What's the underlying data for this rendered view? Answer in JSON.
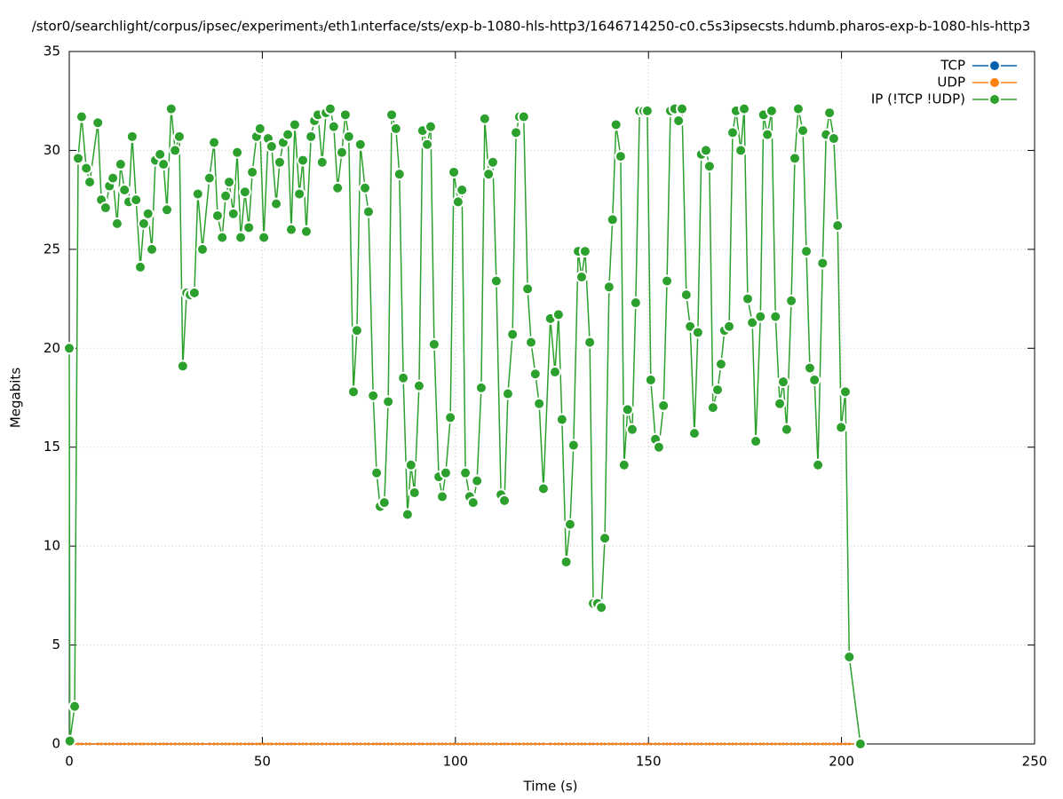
{
  "chart_data": {
    "type": "line",
    "title": "/stor0/searchlight/corpus/ipsec/experiment₃/eth1ᵢnterface/sts/exp-b-1080-hls-http3/1646714250-c0.c5s3ipsecsts.hdumb.pharos-exp-b-1080-hls-http3",
    "x_label": "Time (s)",
    "y_label": "Megabits",
    "xlim": [
      0,
      250
    ],
    "xticks": [
      0,
      50,
      100,
      150,
      200,
      250
    ],
    "ylim": [
      0,
      35
    ],
    "yticks": [
      0,
      5,
      10,
      15,
      20,
      25,
      30,
      35
    ],
    "grid": true,
    "legend": "top right",
    "x": [
      0,
      0.15,
      1.4,
      2.3,
      3.2,
      4.4,
      5.3,
      7.4,
      8.3,
      9.4,
      10.4,
      11.3,
      12.4,
      13.3,
      14.3,
      15.4,
      16.3,
      17.3,
      18.4,
      19.3,
      20.4,
      21.4,
      22.3,
      23.5,
      24.4,
      25.3,
      26.4,
      27.4,
      28.5,
      29.4,
      30.4,
      31.3,
      32.4,
      33.3,
      34.5,
      36.3,
      37.5,
      38.4,
      39.6,
      40.5,
      41.4,
      42.5,
      43.5,
      44.4,
      45.5,
      46.5,
      47.4,
      48.5,
      49.4,
      50.4,
      51.5,
      52.4,
      53.6,
      54.5,
      55.4,
      56.6,
      57.5,
      58.4,
      59.6,
      60.5,
      61.4,
      62.6,
      63.5,
      64.4,
      65.5,
      66.5,
      67.6,
      68.5,
      69.5,
      70.6,
      71.5,
      72.4,
      73.6,
      74.5,
      75.4,
      76.6,
      77.5,
      78.7,
      79.6,
      80.5,
      81.6,
      82.6,
      83.5,
      84.6,
      85.5,
      86.5,
      87.6,
      88.5,
      89.4,
      90.6,
      91.5,
      92.7,
      93.6,
      94.5,
      95.7,
      96.6,
      97.5,
      98.7,
      99.6,
      100.7,
      101.7,
      102.6,
      103.7,
      104.6,
      105.6,
      106.7,
      107.6,
      108.6,
      109.7,
      110.6,
      111.8,
      112.7,
      113.6,
      114.8,
      115.7,
      116.6,
      117.7,
      118.7,
      119.6,
      120.7,
      121.7,
      122.8,
      124.6,
      125.8,
      126.7,
      127.6,
      128.7,
      129.7,
      130.6,
      131.8,
      132.7,
      133.6,
      134.8,
      135.7,
      136.8,
      137.8,
      138.7,
      139.8,
      140.7,
      141.6,
      142.8,
      143.7,
      144.6,
      145.8,
      146.7,
      147.7,
      148.8,
      149.7,
      150.6,
      151.8,
      152.7,
      153.9,
      154.8,
      155.7,
      156.8,
      157.8,
      158.7,
      159.8,
      160.8,
      161.9,
      162.8,
      163.7,
      164.9,
      165.8,
      166.7,
      167.9,
      168.8,
      169.7,
      170.9,
      171.8,
      172.7,
      173.9,
      174.8,
      175.7,
      176.9,
      177.8,
      179.0,
      179.8,
      180.8,
      181.9,
      182.9,
      184.0,
      184.9,
      185.8,
      187.0,
      187.9,
      188.8,
      190.0,
      190.9,
      191.8,
      193.0,
      193.9,
      195.1,
      196.0,
      196.9,
      198.0,
      199.0,
      199.9,
      201.0,
      202.0,
      204.9
    ],
    "series": [
      {
        "name": "TCP",
        "color": "#0060ad",
        "values": [
          0,
          0,
          0,
          0,
          0,
          0,
          0,
          0,
          0,
          0,
          0,
          0,
          0,
          0,
          0,
          0,
          0,
          0,
          0,
          0,
          0,
          0,
          0,
          0,
          0,
          0,
          0,
          0,
          0,
          0,
          0,
          0,
          0,
          0,
          0,
          0,
          0,
          0,
          0,
          0,
          0,
          0,
          0,
          0,
          0,
          0,
          0,
          0,
          0,
          0,
          0,
          0,
          0,
          0,
          0,
          0,
          0,
          0,
          0,
          0,
          0,
          0,
          0,
          0,
          0,
          0,
          0,
          0,
          0,
          0,
          0,
          0,
          0,
          0,
          0,
          0,
          0,
          0,
          0,
          0,
          0,
          0,
          0,
          0,
          0,
          0,
          0,
          0,
          0,
          0,
          0,
          0,
          0,
          0,
          0,
          0,
          0,
          0,
          0,
          0,
          0,
          0,
          0,
          0,
          0,
          0,
          0,
          0,
          0,
          0,
          0,
          0,
          0,
          0,
          0,
          0,
          0,
          0,
          0,
          0,
          0,
          0,
          0,
          0,
          0,
          0,
          0,
          0,
          0,
          0,
          0,
          0,
          0,
          0,
          0,
          0,
          0,
          0,
          0,
          0,
          0,
          0,
          0,
          0,
          0,
          0,
          0,
          0,
          0,
          0,
          0,
          0,
          0,
          0,
          0,
          0,
          0,
          0,
          0,
          0,
          0,
          0,
          0,
          0,
          0,
          0,
          0,
          0,
          0,
          0,
          0,
          0,
          0,
          0,
          0,
          0,
          0,
          0,
          0,
          0,
          0,
          0,
          0,
          0,
          0,
          0,
          0,
          0,
          0,
          0,
          0,
          0,
          0,
          0,
          0,
          0,
          0,
          0,
          0,
          0,
          0
        ]
      },
      {
        "name": "UDP",
        "color": "#ff7f0e",
        "values": [
          0,
          0,
          0,
          0,
          0,
          0,
          0,
          0,
          0,
          0,
          0,
          0,
          0,
          0,
          0,
          0,
          0,
          0,
          0,
          0,
          0,
          0,
          0,
          0,
          0,
          0,
          0,
          0,
          0,
          0,
          0,
          0,
          0,
          0,
          0,
          0,
          0,
          0,
          0,
          0,
          0,
          0,
          0,
          0,
          0,
          0,
          0,
          0,
          0,
          0,
          0,
          0,
          0,
          0,
          0,
          0,
          0,
          0,
          0,
          0,
          0,
          0,
          0,
          0,
          0,
          0,
          0,
          0,
          0,
          0,
          0,
          0,
          0,
          0,
          0,
          0,
          0,
          0,
          0,
          0,
          0,
          0,
          0,
          0,
          0,
          0,
          0,
          0,
          0,
          0,
          0,
          0,
          0,
          0,
          0,
          0,
          0,
          0,
          0,
          0,
          0,
          0,
          0,
          0,
          0,
          0,
          0,
          0,
          0,
          0,
          0,
          0,
          0,
          0,
          0,
          0,
          0,
          0,
          0,
          0,
          0,
          0,
          0,
          0,
          0,
          0,
          0,
          0,
          0,
          0,
          0,
          0,
          0,
          0,
          0,
          0,
          0,
          0,
          0,
          0,
          0,
          0,
          0,
          0,
          0,
          0,
          0,
          0,
          0,
          0,
          0,
          0,
          0,
          0,
          0,
          0,
          0,
          0,
          0,
          0,
          0,
          0,
          0,
          0,
          0,
          0,
          0,
          0,
          0,
          0,
          0,
          0,
          0,
          0,
          0,
          0,
          0,
          0,
          0,
          0,
          0,
          0,
          0,
          0,
          0,
          0,
          0,
          0,
          0,
          0,
          0,
          0,
          0,
          0,
          0,
          0,
          0,
          0,
          0,
          0,
          0
        ]
      },
      {
        "name": "IP (!TCP  !UDP)",
        "color": "#2ca02c",
        "values": [
          20.0,
          0.15,
          1.9,
          29.6,
          31.7,
          29.1,
          28.4,
          31.4,
          27.5,
          27.1,
          28.2,
          28.6,
          26.3,
          29.3,
          28.0,
          27.4,
          30.7,
          27.5,
          24.1,
          26.3,
          26.8,
          25.0,
          29.5,
          29.8,
          29.3,
          27.0,
          32.1,
          30.0,
          30.7,
          19.1,
          22.8,
          22.7,
          22.8,
          27.8,
          25.0,
          28.6,
          30.4,
          26.7,
          25.6,
          27.7,
          28.4,
          26.8,
          29.9,
          25.6,
          27.9,
          26.1,
          28.9,
          30.7,
          31.1,
          25.6,
          30.6,
          30.2,
          27.3,
          29.4,
          30.4,
          30.8,
          26.0,
          31.3,
          27.8,
          29.5,
          25.9,
          30.7,
          31.5,
          31.8,
          29.4,
          31.9,
          32.1,
          31.2,
          28.1,
          29.9,
          31.8,
          30.7,
          17.8,
          20.9,
          30.3,
          28.1,
          26.9,
          17.6,
          13.7,
          12.0,
          12.2,
          17.3,
          31.8,
          31.1,
          28.8,
          18.5,
          11.6,
          14.1,
          12.7,
          18.1,
          31.0,
          30.3,
          31.2,
          20.2,
          13.5,
          12.5,
          13.7,
          16.5,
          28.9,
          27.4,
          28.0,
          13.7,
          12.5,
          12.2,
          13.3,
          18.0,
          31.6,
          28.8,
          29.4,
          23.4,
          12.6,
          12.3,
          17.7,
          20.7,
          30.9,
          31.7,
          31.7,
          23.0,
          20.3,
          18.7,
          17.2,
          12.9,
          21.5,
          18.8,
          21.7,
          16.4,
          9.2,
          11.1,
          15.1,
          24.9,
          23.6,
          24.9,
          20.3,
          7.1,
          7.1,
          6.9,
          10.4,
          23.1,
          26.5,
          31.3,
          29.7,
          14.1,
          16.9,
          15.9,
          22.3,
          32.0,
          32.0,
          32.0,
          18.4,
          15.4,
          15.0,
          17.1,
          23.4,
          32.0,
          32.1,
          31.5,
          32.1,
          22.7,
          21.1,
          15.7,
          20.8,
          29.8,
          30.0,
          29.2,
          17.0,
          17.9,
          19.2,
          20.9,
          21.1,
          30.9,
          32.0,
          30.0,
          32.1,
          22.5,
          21.3,
          15.3,
          21.6,
          31.8,
          30.8,
          32.0,
          21.6,
          17.2,
          18.3,
          15.9,
          22.4,
          29.6,
          32.1,
          31.0,
          24.9,
          19.0,
          18.4,
          14.1,
          24.3,
          30.8,
          31.9,
          30.6,
          26.2,
          16.0,
          17.8,
          4.4,
          0
        ]
      }
    ]
  }
}
